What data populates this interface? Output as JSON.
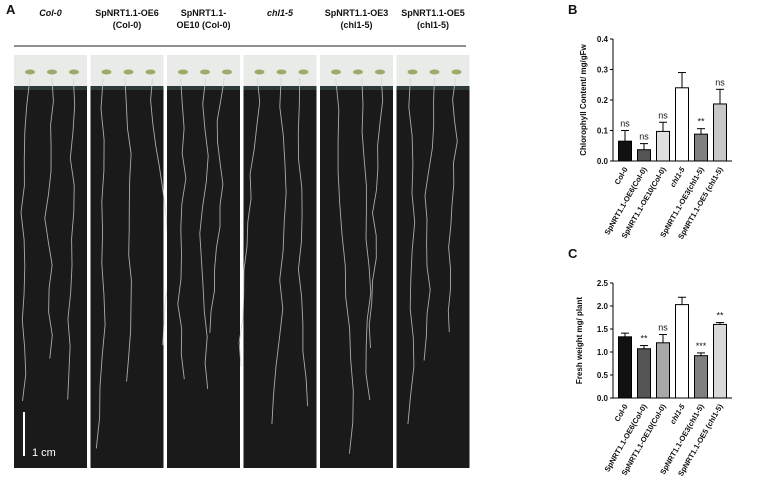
{
  "panel_a": {
    "label": "A",
    "columns": [
      [
        "Col-0"
      ],
      [
        "SpNRT1.1-OE6",
        "(Col-0)"
      ],
      [
        "SpNRT1.1-",
        "OE10 (Col-0)"
      ],
      [
        "chl1-5"
      ],
      [
        "SpNRT1.1-OE3",
        "(chl1-5)"
      ],
      [
        "SpNRT1.1-OE5",
        "(chl1-5)"
      ]
    ],
    "scale_bar": "1 cm"
  },
  "chart_data": [
    {
      "type": "bar",
      "panel_label": "B",
      "y_label": "Chlorophyll Content/ mg/gFw",
      "categories": [
        "Col-0",
        "SpNRT1.1-OE6(Col-0)",
        "SpNRT1.1-OE10(Col-0)",
        "chl1-5",
        "SpNRT1.1-OE3(chl1-5)",
        "SpNRT1.1-OE5 (chl1-5)"
      ],
      "values": [
        0.065,
        0.037,
        0.097,
        0.24,
        0.088,
        0.187
      ],
      "errors": [
        0.035,
        0.02,
        0.03,
        0.05,
        0.018,
        0.048
      ],
      "annotations": [
        "ns",
        "ns",
        "ns",
        null,
        "**",
        "ns"
      ],
      "colors": [
        "#111111",
        "#555555",
        "#e0e0e0",
        "#ffffff",
        "#808080",
        "#c8c8c8"
      ],
      "ylim": [
        0,
        0.4
      ],
      "yticks": [
        {
          "value": 0,
          "label": "0.0"
        },
        0.1,
        0.2,
        0.3,
        0.4
      ]
    },
    {
      "type": "bar",
      "panel_label": "C",
      "y_label": "Fresh weight mg/ plant",
      "categories": [
        "Col-0",
        "SpNRT1.1-OE6(Col-0)",
        "SpNRT1.1-OE10(Col-0)",
        "chl1-5",
        "SpNRT1.1-OE3(chl1-5)",
        "SpNRT1.1-OE5 (chl1-5)"
      ],
      "values": [
        1.33,
        1.07,
        1.2,
        2.03,
        0.92,
        1.6
      ],
      "errors": [
        0.08,
        0.07,
        0.18,
        0.16,
        0.06,
        0.04
      ],
      "annotations": [
        null,
        "**",
        "ns",
        null,
        "***",
        "**"
      ],
      "colors": [
        "#111111",
        "#555555",
        "#a8a8a8",
        "#ffffff",
        "#808080",
        "#d8d8d8"
      ],
      "ylim": [
        0,
        2.5
      ],
      "yticks": [
        {
          "value": 0,
          "label": "0.0"
        },
        0.5,
        {
          "value": 1,
          "label": "1.0"
        },
        1.5,
        {
          "value": 2,
          "label": "2.0"
        },
        2.5
      ]
    }
  ]
}
